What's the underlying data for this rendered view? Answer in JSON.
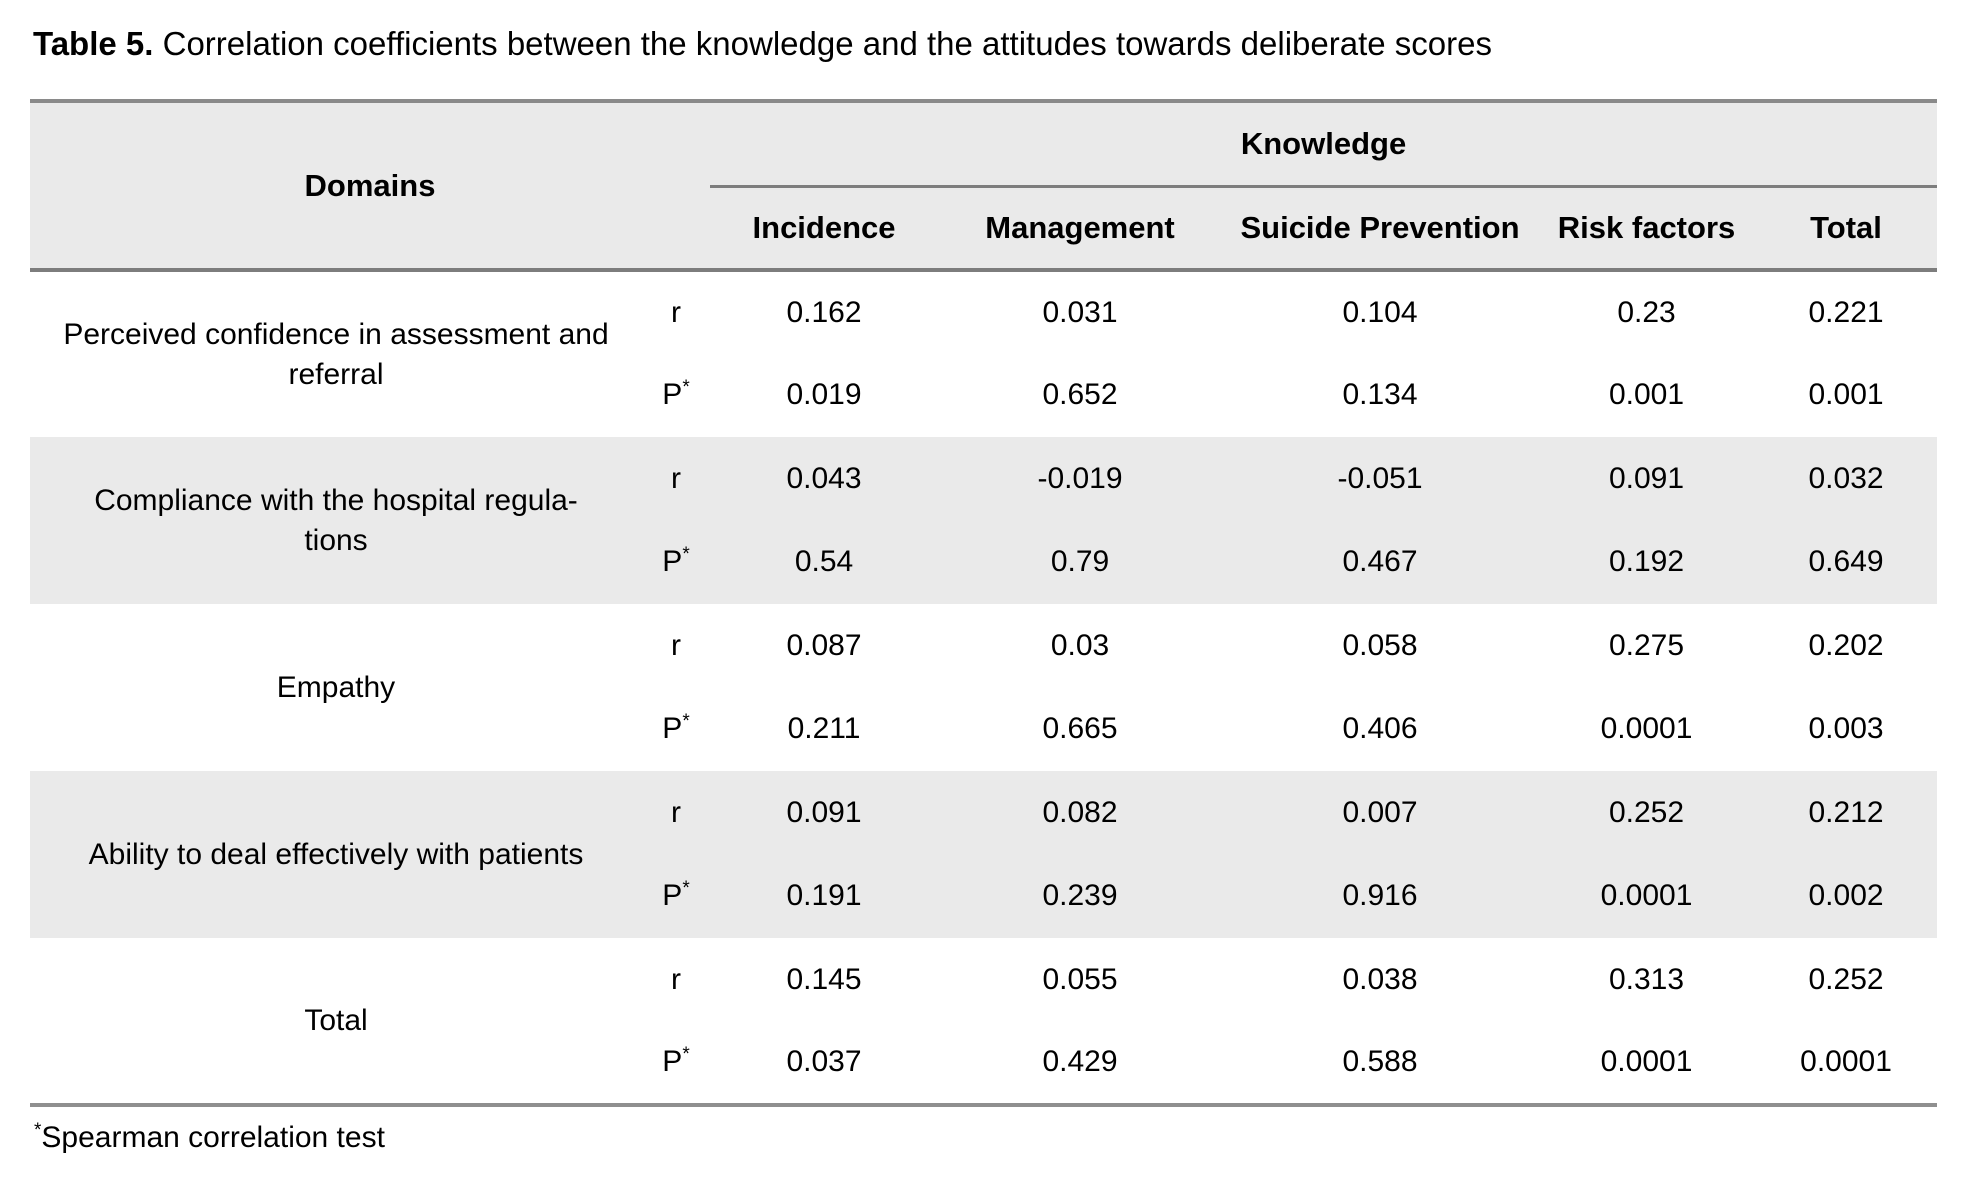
{
  "caption": {
    "label": "Table 5.",
    "text": " Correlation coefficients between the knowledge and the attitudes towards deliberate scores"
  },
  "table": {
    "domains_header": "Domains",
    "group_header": "Knowledge",
    "columns": [
      "Incidence",
      "Management",
      "Suicide Prevention",
      "Risk factors",
      "Total"
    ],
    "stat_labels": {
      "r": "r",
      "p": "P",
      "p_sup": "*"
    },
    "rows": [
      {
        "domain": "Perceived confidence in assessment and\nreferral",
        "r": [
          "0.162",
          "0.031",
          "0.104",
          "0.23",
          "0.221"
        ],
        "p": [
          "0.019",
          "0.652",
          "0.134",
          "0.001",
          "0.001"
        ]
      },
      {
        "domain": "Compliance with the hospital regula-\ntions",
        "r": [
          "0.043",
          "-0.019",
          "-0.051",
          "0.091",
          "0.032"
        ],
        "p": [
          "0.54",
          "0.79",
          "0.467",
          "0.192",
          "0.649"
        ]
      },
      {
        "domain": "Empathy",
        "r": [
          "0.087",
          "0.03",
          "0.058",
          "0.275",
          "0.202"
        ],
        "p": [
          "0.211",
          "0.665",
          "0.406",
          "0.0001",
          "0.003"
        ]
      },
      {
        "domain": "Ability to deal effectively with patients",
        "r": [
          "0.091",
          "0.082",
          "0.007",
          "0.252",
          "0.212"
        ],
        "p": [
          "0.191",
          "0.239",
          "0.916",
          "0.0001",
          "0.002"
        ]
      },
      {
        "domain": "Total",
        "r": [
          "0.145",
          "0.055",
          "0.038",
          "0.313",
          "0.252"
        ],
        "p": [
          "0.037",
          "0.429",
          "0.588",
          "0.0001",
          "0.0001"
        ]
      }
    ]
  },
  "footnote": {
    "marker": "*",
    "text": "Spearman correlation test"
  }
}
